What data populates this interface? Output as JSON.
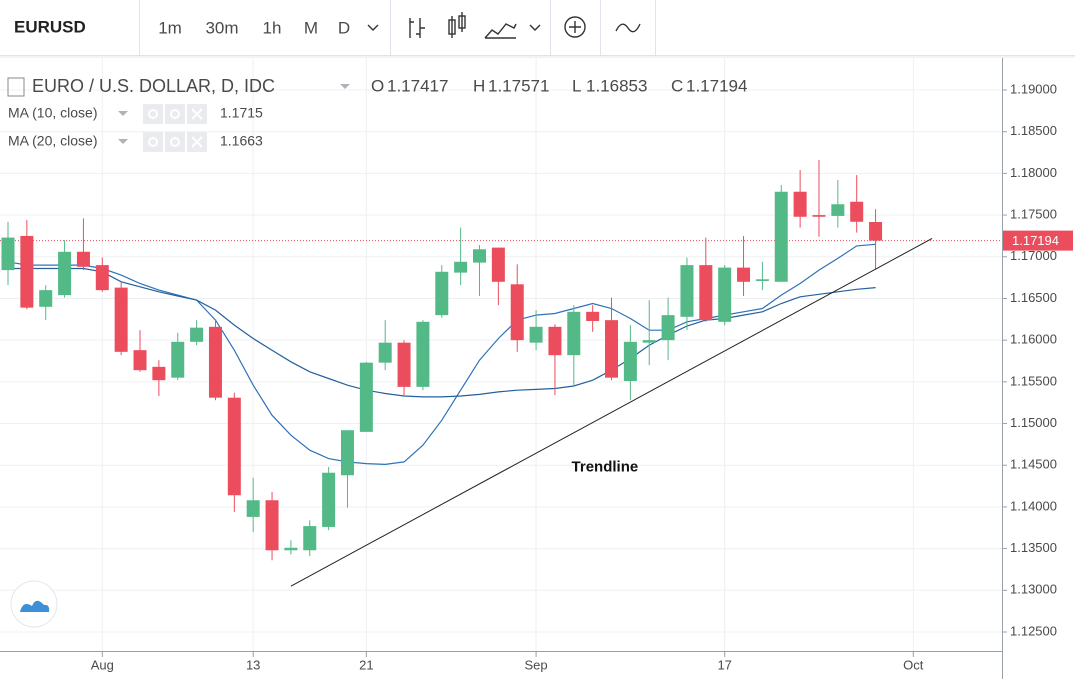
{
  "toolbar": {
    "symbol": "EURUSD",
    "intervals": [
      "1m",
      "30m",
      "1h",
      "M",
      "D"
    ],
    "active_interval": 4
  },
  "chart_data": {
    "type": "candlestick",
    "title": "EURO / U.S. DOLLAR, D, IDC",
    "ohlc_labels": [
      "O",
      "H",
      "L",
      "C"
    ],
    "categories": [
      null,
      null,
      null,
      null,
      null,
      "Aug",
      null,
      null,
      null,
      null,
      null,
      null,
      null,
      "13",
      null,
      null,
      null,
      null,
      null,
      "21",
      null,
      null,
      null,
      null,
      null,
      null,
      null,
      null,
      "Sep",
      null,
      null,
      null,
      null,
      null,
      null,
      null,
      null,
      null,
      "17",
      null,
      null,
      null,
      null,
      null,
      null,
      null,
      null,
      null,
      "Oct",
      null,
      null,
      null,
      null
    ],
    "series": [
      {
        "name": "EURUSD",
        "up_color": "#53b987",
        "down_color": "#eb4d5c",
        "open": [
          1.1684,
          1.1725,
          1.164,
          1.1654,
          1.1706,
          1.169,
          1.1663,
          1.1588,
          1.1568,
          1.1555,
          1.1598,
          1.1616,
          1.1531,
          1.1388,
          1.1408,
          1.1348,
          1.1348,
          1.1376,
          1.1438,
          1.149,
          1.1573,
          1.1597,
          1.1544,
          1.163,
          1.1681,
          1.1693,
          1.1711,
          1.1667,
          1.1597,
          1.1616,
          1.1582,
          1.1634,
          1.1624,
          1.1551,
          1.1597,
          1.16,
          1.1628,
          1.169,
          1.1622,
          1.1687,
          1.1671,
          1.167,
          1.1778,
          1.175,
          1.1749,
          1.1766,
          1.17417,
          null,
          null,
          null,
          null,
          null,
          null
        ],
        "high": [
          1.1742,
          1.1744,
          1.1666,
          1.172,
          1.1746,
          1.1699,
          1.1669,
          1.1612,
          1.1576,
          1.1609,
          1.1624,
          1.1624,
          1.1537,
          1.1435,
          1.1418,
          1.136,
          1.1384,
          1.1448,
          1.1492,
          1.1574,
          1.1624,
          1.16,
          1.1624,
          1.169,
          1.1735,
          1.1714,
          1.1711,
          1.1691,
          1.1636,
          1.1619,
          1.1642,
          1.1642,
          1.1651,
          1.1618,
          1.1648,
          1.1651,
          1.1699,
          1.1723,
          1.169,
          1.1725,
          1.1694,
          1.1786,
          1.1804,
          1.1816,
          1.1792,
          1.1798,
          1.17571,
          null,
          null,
          null,
          null,
          null,
          null
        ],
        "low": [
          1.1666,
          1.1637,
          1.1624,
          1.1651,
          1.1684,
          1.1658,
          1.1582,
          1.1562,
          1.1533,
          1.1552,
          1.1594,
          1.1528,
          1.1394,
          1.137,
          1.1336,
          1.1343,
          1.1341,
          1.1372,
          1.1399,
          1.149,
          1.1564,
          1.1534,
          1.154,
          1.1627,
          1.1666,
          1.1653,
          1.1642,
          1.1586,
          1.1588,
          1.1534,
          1.1546,
          1.161,
          1.1552,
          1.1528,
          1.157,
          1.1576,
          1.1612,
          1.1622,
          1.1618,
          1.1653,
          1.166,
          1.167,
          1.1735,
          1.1724,
          1.1735,
          1.1729,
          1.16853,
          null,
          null,
          null,
          null,
          null,
          null
        ],
        "close": [
          1.1723,
          1.1639,
          1.166,
          1.1706,
          1.1688,
          1.166,
          1.1586,
          1.1564,
          1.1552,
          1.1598,
          1.1615,
          1.1531,
          1.1414,
          1.1408,
          1.1348,
          1.1351,
          1.1377,
          1.1441,
          1.1492,
          1.1573,
          1.1597,
          1.1544,
          1.1622,
          1.1682,
          1.1694,
          1.1709,
          1.167,
          1.16,
          1.1616,
          1.1582,
          1.1634,
          1.1623,
          1.1555,
          1.1598,
          1.16,
          1.163,
          1.169,
          1.1624,
          1.1687,
          1.167,
          1.1673,
          1.1778,
          1.1748,
          1.1748,
          1.1763,
          1.1742,
          1.17194,
          null,
          null,
          null,
          null,
          null,
          null
        ]
      }
    ],
    "indicators": [
      {
        "name": "MA (10, close)",
        "color": "#2f72b8",
        "values": [
          1.1694,
          1.169,
          1.169,
          1.169,
          1.169,
          1.1686,
          1.1678,
          1.1668,
          1.166,
          1.1654,
          1.1648,
          1.1624,
          1.1588,
          1.1546,
          1.151,
          1.1486,
          1.1468,
          1.1458,
          1.1454,
          1.1452,
          1.1451,
          1.1454,
          1.1474,
          1.1504,
          1.154,
          1.1576,
          1.1602,
          1.1624,
          1.163,
          1.1632,
          1.1638,
          1.1644,
          1.1638,
          1.1626,
          1.1612,
          1.1612,
          1.1622,
          1.1626,
          1.163,
          1.1634,
          1.1638,
          1.1654,
          1.1668,
          1.1684,
          1.1698,
          1.1713,
          1.1715,
          null,
          null,
          null,
          null,
          null,
          null
        ]
      },
      {
        "name": "MA (20, close)",
        "color": "#24609e",
        "values": [
          1.1686,
          1.1686,
          1.1686,
          1.1686,
          1.1686,
          1.1682,
          1.167,
          1.1664,
          1.1658,
          1.1653,
          1.1648,
          1.1636,
          1.1618,
          1.1602,
          1.1588,
          1.1574,
          1.1562,
          1.1554,
          1.1546,
          1.154,
          1.1536,
          1.1533,
          1.1532,
          1.1532,
          1.1533,
          1.1535,
          1.1538,
          1.154,
          1.1541,
          1.1542,
          1.1545,
          1.1552,
          1.1564,
          1.1578,
          1.1594,
          1.1606,
          1.1617,
          1.1624,
          1.1626,
          1.163,
          1.1634,
          1.1644,
          1.1652,
          1.1655,
          1.1658,
          1.1661,
          1.1663,
          null,
          null,
          null,
          null,
          null,
          null
        ]
      }
    ],
    "annotations": [
      {
        "text": "Trendline",
        "x": [
          15,
          49
        ],
        "y": [
          1.1305,
          1.1722
        ]
      }
    ],
    "ylim": [
      1.1226,
      1.1936
    ],
    "yticks": [
      {
        "value": 1.125,
        "label": "1.12500"
      },
      {
        "value": 1.13,
        "label": "1.13000"
      },
      {
        "value": 1.135,
        "label": "1.13500"
      },
      {
        "value": 1.14,
        "label": "1.14000"
      },
      {
        "value": 1.145,
        "label": "1.14500"
      },
      {
        "value": 1.15,
        "label": "1.15000"
      },
      {
        "value": 1.155,
        "label": "1.15500"
      },
      {
        "value": 1.16,
        "label": "1.16000"
      },
      {
        "value": 1.165,
        "label": "1.16500"
      },
      {
        "value": 1.17,
        "label": "1.17000"
      },
      {
        "value": 1.175,
        "label": "1.17500"
      },
      {
        "value": 1.18,
        "label": "1.18000"
      },
      {
        "value": 1.185,
        "label": "1.18500"
      },
      {
        "value": 1.19,
        "label": "1.19000"
      }
    ],
    "grid": true,
    "last_price_color": "#eb4d5c"
  }
}
